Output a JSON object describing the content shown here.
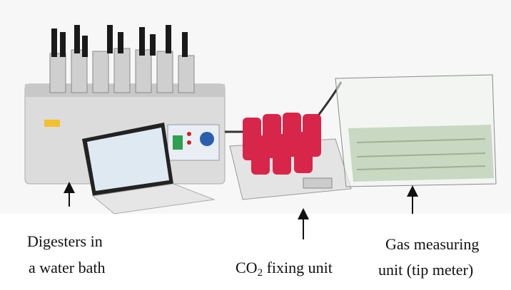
{
  "labels": [
    {
      "lines": [
        "Digesters in",
        "a water bath"
      ]
    },
    {
      "parts": [
        "CO",
        "2",
        " fixing unit"
      ]
    },
    {
      "lines": [
        "Gas measuring",
        "unit (tip meter)"
      ]
    }
  ]
}
